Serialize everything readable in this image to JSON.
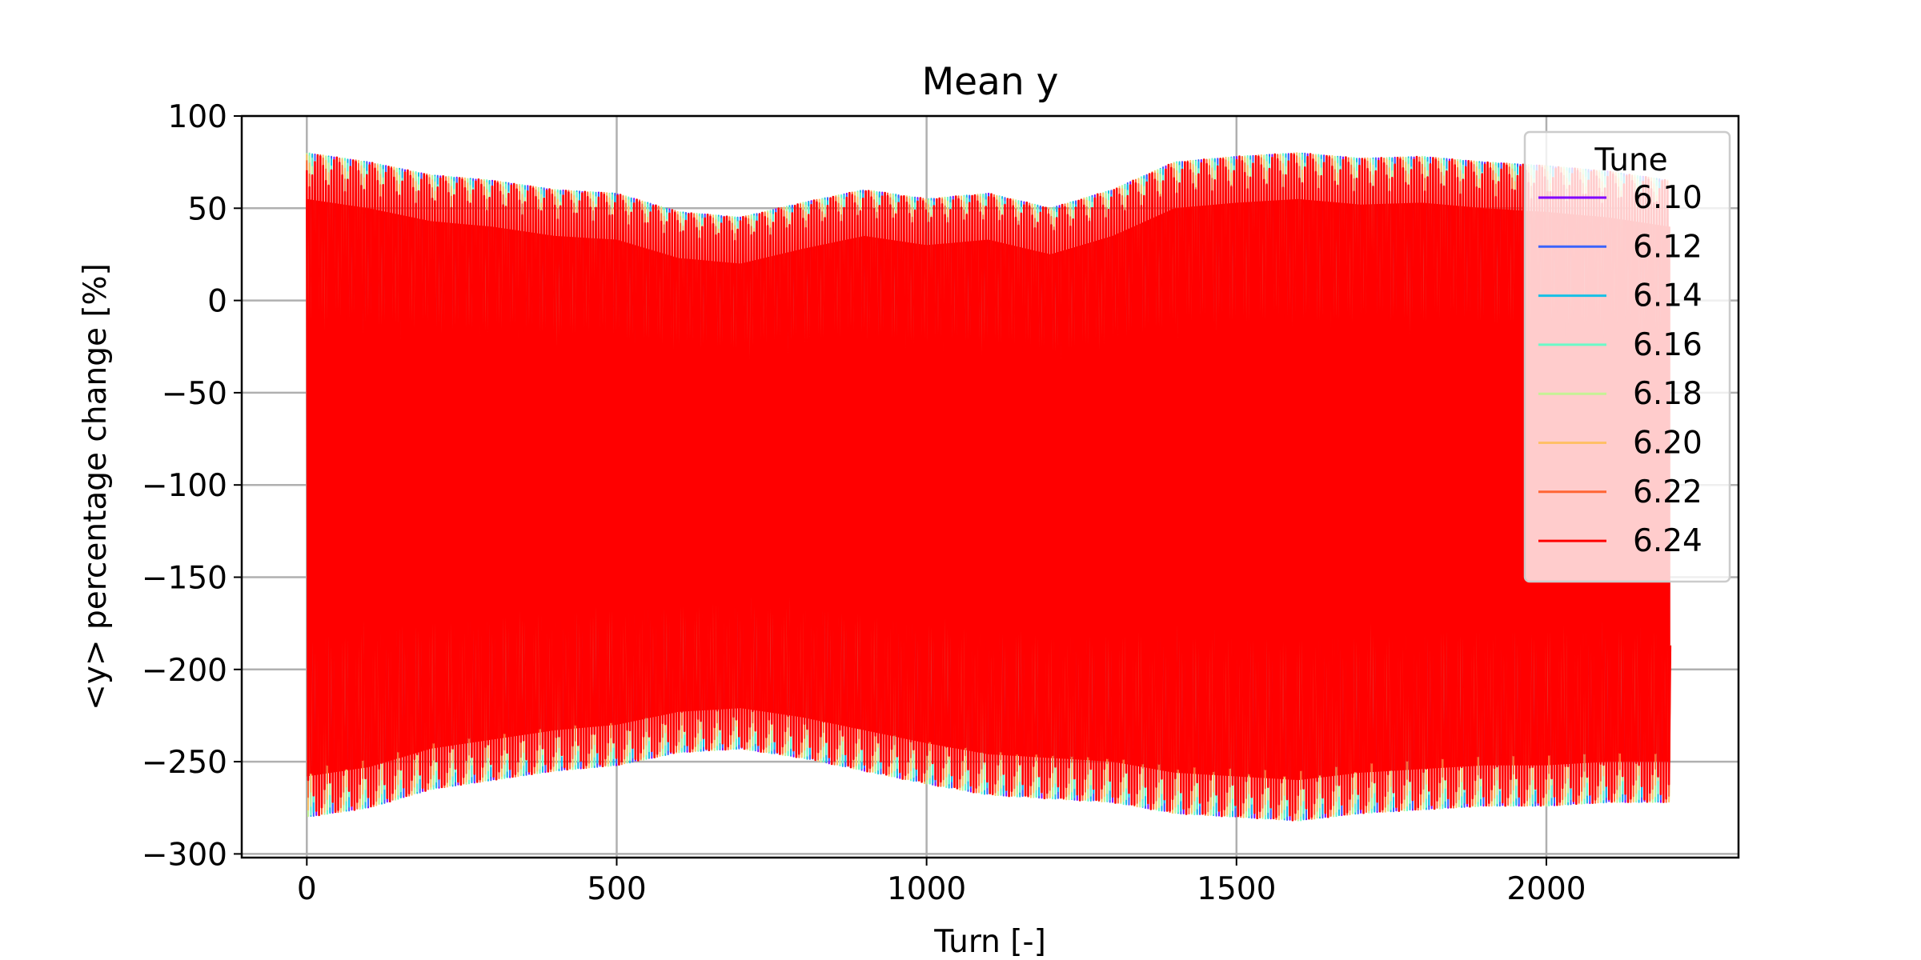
{
  "chart_data": {
    "type": "line",
    "title": "Mean y",
    "xlabel": "Turn [-]",
    "ylabel": "<y> percentage change [%]",
    "xlim": [
      -105,
      2310
    ],
    "ylim": [
      -302,
      100
    ],
    "x_ticks": [
      0,
      500,
      1000,
      1500,
      2000
    ],
    "y_ticks": [
      100,
      50,
      0,
      -50,
      -100,
      -150,
      -200,
      -250,
      -300
    ],
    "x_tick_labels": [
      "0",
      "500",
      "1000",
      "1500",
      "2000"
    ],
    "y_tick_labels": [
      "100",
      "50",
      "0",
      "−50",
      "−100",
      "−150",
      "−200",
      "−250",
      "−300"
    ],
    "grid": true,
    "legend": {
      "title": "Tune",
      "placement": "upper right"
    },
    "x_range": [
      0,
      2200
    ],
    "envelope": {
      "turn": [
        0,
        100,
        200,
        300,
        400,
        500,
        600,
        700,
        800,
        900,
        1000,
        1100,
        1200,
        1300,
        1400,
        1500,
        1600,
        1700,
        1800,
        1900,
        2000,
        2100,
        2200
      ],
      "upper": [
        80,
        75,
        68,
        65,
        60,
        58,
        48,
        45,
        53,
        60,
        55,
        58,
        50,
        60,
        75,
        78,
        80,
        77,
        78,
        75,
        73,
        70,
        65
      ],
      "lower": [
        -280,
        -275,
        -265,
        -260,
        -255,
        -252,
        -245,
        -243,
        -248,
        -255,
        -262,
        -268,
        -270,
        -272,
        -278,
        -280,
        -282,
        -278,
        -276,
        -274,
        -274,
        -272,
        -272
      ],
      "end_value": -187
    },
    "series": [
      {
        "name": "6.10",
        "color": "#8000ff"
      },
      {
        "name": "6.12",
        "color": "#3b63fb"
      },
      {
        "name": "6.14",
        "color": "#16c0e6"
      },
      {
        "name": "6.16",
        "color": "#6afac8"
      },
      {
        "name": "6.18",
        "color": "#c4f294"
      },
      {
        "name": "6.20",
        "color": "#ffc067"
      },
      {
        "name": "6.22",
        "color": "#ff6534"
      },
      {
        "name": "6.24",
        "color": "#ff0000"
      }
    ]
  }
}
